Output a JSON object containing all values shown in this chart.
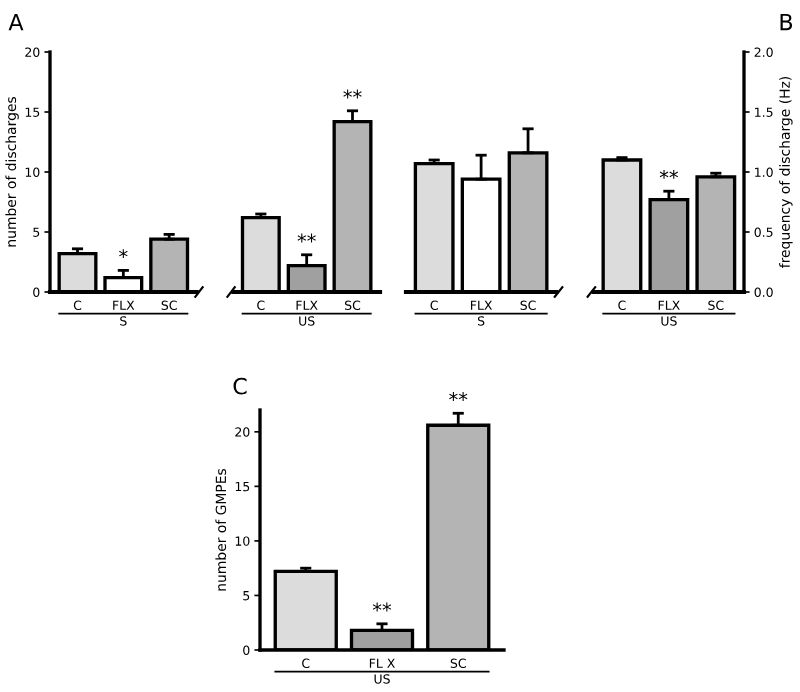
{
  "chart_data": [
    {
      "type": "bar",
      "title": "A",
      "ylabel": "number of discharges",
      "categories": [
        "C",
        "FLX",
        "SC",
        null,
        "C",
        "FLX",
        "SC"
      ],
      "values": [
        3.2,
        1.2,
        4.4,
        null,
        6.2,
        2.2,
        14.2
      ],
      "errors": [
        0.4,
        0.6,
        0.4,
        null,
        0.3,
        0.9,
        0.9
      ],
      "value_labels": [
        null,
        "*",
        null,
        null,
        null,
        "**",
        "**"
      ],
      "colors": [
        "#dcdcdc",
        "#ffffff",
        "#b4b4b4",
        "#ffffff",
        "#dcdcdc",
        "#a0a0a0",
        "#b4b4b4"
      ],
      "ylim": [
        0,
        20
      ],
      "yticks": [
        0,
        5,
        10,
        15,
        20
      ],
      "annotations": [
        "S",
        "US"
      ]
    },
    {
      "type": "bar",
      "title": "B",
      "y2label": "frequency of discharge (Hz)",
      "categories": [
        "C",
        "FLX",
        "SC",
        null,
        "C",
        "FLX",
        "SC"
      ],
      "series": [
        {
          "axis": "y2",
          "values": [
            1.07,
            0.94,
            1.16,
            null,
            1.1,
            0.77,
            0.96
          ],
          "errors": [
            0.03,
            0.2,
            0.2,
            null,
            0.02,
            0.07,
            0.03
          ],
          "value_labels": [
            null,
            null,
            null,
            null,
            null,
            "**",
            null
          ]
        }
      ],
      "colors": [
        "#dcdcdc",
        "#ffffff",
        "#b4b4b4",
        "#ffffff",
        "#dcdcdc",
        "#a0a0a0",
        "#b4b4b4"
      ],
      "y2lim": [
        0,
        2.0
      ],
      "y2ticks": [
        {
          "value": 0,
          "label": "0.0"
        },
        0.5,
        {
          "value": 1,
          "label": "1.0"
        },
        1.5,
        {
          "value": 2,
          "label": "2.0"
        }
      ],
      "annotations": [
        "S",
        "US"
      ]
    },
    {
      "type": "bar",
      "title": "C",
      "ylabel": "number of GMPEs",
      "categories": [
        "C",
        "FL X",
        "SC"
      ],
      "values": [
        7.2,
        1.8,
        20.6
      ],
      "errors": [
        0.3,
        0.6,
        1.1
      ],
      "value_labels": [
        null,
        "**",
        "**"
      ],
      "colors": [
        "#dcdcdc",
        "#a0a0a0",
        "#b4b4b4"
      ],
      "ylim": [
        0,
        22
      ],
      "yticks": [
        0,
        5,
        10,
        15,
        20
      ],
      "annotations": [
        "US"
      ]
    }
  ]
}
